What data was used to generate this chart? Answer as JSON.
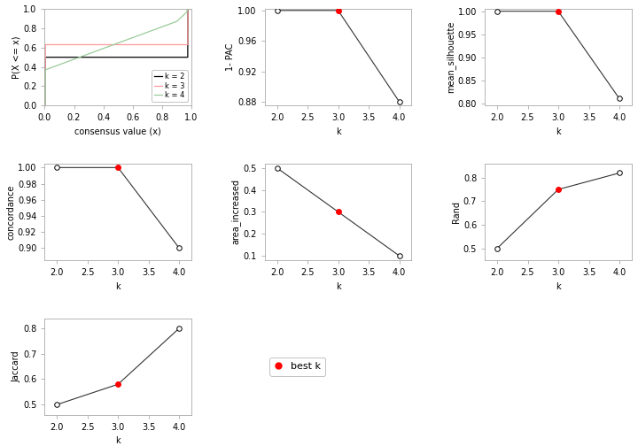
{
  "k_values": [
    2,
    3,
    4
  ],
  "one_pac": [
    1.0,
    1.0,
    0.88
  ],
  "mean_silhouette": [
    1.0,
    1.0,
    0.81
  ],
  "concordance": [
    1.0,
    1.0,
    0.9
  ],
  "area_increased": [
    0.5,
    0.3,
    0.1
  ],
  "rand": [
    0.5,
    0.75,
    0.82
  ],
  "jaccard": [
    0.5,
    0.58,
    0.8
  ],
  "best_k": 3,
  "ecdf_k2_color": "#000000",
  "ecdf_k3_color": "#FF9999",
  "ecdf_k4_color": "#99CC99",
  "line_color": "#333333",
  "bg_color": "white",
  "font_size": 7,
  "marker_size": 4
}
